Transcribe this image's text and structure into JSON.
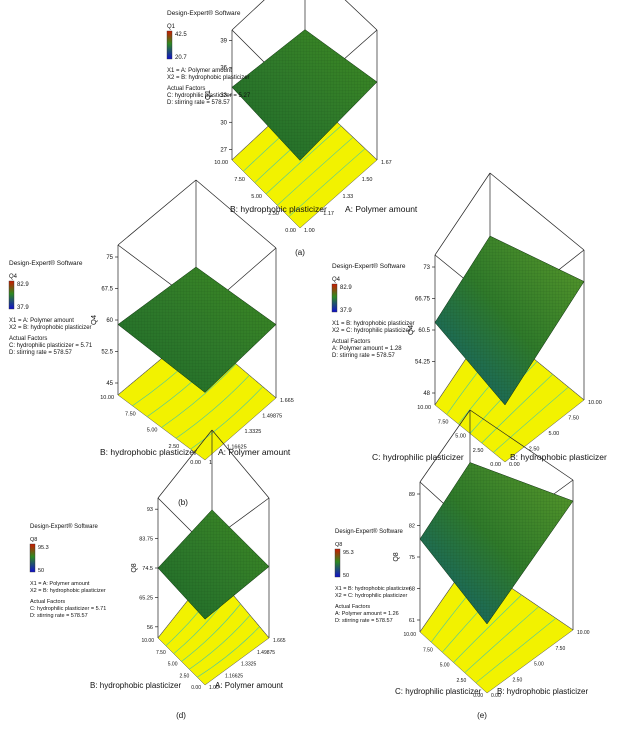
{
  "colors": {
    "surface_top": "#2f7a2a",
    "surface_low": "#0e5e7a",
    "surface_high": "#5a9a2a",
    "floor": "#f2f200",
    "contour": "#44c8a8",
    "box": "#222222",
    "legend_high": "#cc0000",
    "legend_low": "#0000cc"
  },
  "chart_data": [
    {
      "panel_label": "(a)",
      "type": "surface3d",
      "software": "Design-Expert® Software",
      "response": "Q1",
      "legend_high": "42.5",
      "legend_low": "20.7",
      "x1_def": "X1 = A: Polymer amount",
      "x2_def": "X2 = B: hydrophobic plasticizer",
      "actual_factors_title": "Actual Factors",
      "actual_factors": [
        "C: hydrophilic plasticizer = 5.27",
        "D: stirring rate = 578.57"
      ],
      "z_label": "Q1",
      "z_ticks": [
        "39",
        "36",
        "33",
        "30",
        "27"
      ],
      "left_axis_label": "B: hydrophobic plasticizer",
      "left_ticks": [
        "10.00",
        "7.50",
        "5.00",
        "2.50",
        "0.00"
      ],
      "right_axis_label": "A: Polymer amount",
      "right_ticks": [
        "1.67",
        "1.50",
        "1.33",
        "1.17",
        "1.00"
      ]
    },
    {
      "panel_label": "(b)",
      "type": "surface3d",
      "software": "Design-Expert® Software",
      "response": "Q4",
      "legend_high": "82.9",
      "legend_low": "37.9",
      "x1_def": "X1 = A: Polymer amount",
      "x2_def": "X2 = B: hydrophobic plasticizer",
      "actual_factors_title": "Actual Factors",
      "actual_factors": [
        "C: hydrophilic plasticizer = 5.71",
        "D: stirring rate = 578.57"
      ],
      "z_label": "Q4",
      "z_ticks": [
        "75",
        "67.5",
        "60",
        "52.5",
        "45"
      ],
      "left_axis_label": "B: hydrophobic plasticizer",
      "left_ticks": [
        "10.00",
        "7.50",
        "5.00",
        "2.50",
        "0.00"
      ],
      "right_axis_label": "A: Polymer amount",
      "right_ticks": [
        "1.665",
        "1.49875",
        "1.3325",
        "1.16625",
        "1"
      ]
    },
    {
      "panel_label": "(c)",
      "type": "surface3d",
      "software": "Design-Expert® Software",
      "response": "Q4",
      "legend_high": "82.9",
      "legend_low": "37.9",
      "x1_def": "X1 = B: hydrophobic plasticizer",
      "x2_def": "X2 = C: hydrophilic plasticizer",
      "actual_factors_title": "Actual Factors",
      "actual_factors": [
        "A: Polymer amount = 1.28",
        "D: stirring rate = 578.57"
      ],
      "z_label": "Q4",
      "z_ticks": [
        "73",
        "66.75",
        "60.5",
        "54.25",
        "48"
      ],
      "left_axis_label": "C: hydrophilic plasticizer",
      "left_ticks": [
        "10.00",
        "7.50",
        "5.00",
        "2.50",
        "0.00"
      ],
      "right_axis_label": "B: hydrophobic plasticizer",
      "right_ticks": [
        "10.00",
        "7.50",
        "5.00",
        "2.50",
        "0.00"
      ]
    },
    {
      "panel_label": "(d)",
      "type": "surface3d",
      "software": "Design-Expert® Software",
      "response": "Q8",
      "legend_high": "95.3",
      "legend_low": "50",
      "x1_def": "X1 = A: Polymer amount",
      "x2_def": "X2 = B: hydrophobic plasticizer",
      "actual_factors_title": "Actual Factors",
      "actual_factors": [
        "C: hydrophilic plasticizer = 5.71",
        "D: stirring rate = 578.57"
      ],
      "z_label": "Q8",
      "z_ticks": [
        "93",
        "83.75",
        "74.5",
        "65.25",
        "56"
      ],
      "left_axis_label": "B: hydrophobic plasticizer",
      "left_ticks": [
        "10.00",
        "7.50",
        "5.00",
        "2.50",
        "0.00"
      ],
      "right_axis_label": "A: Polymer amount",
      "right_ticks": [
        "1.665",
        "1.49875",
        "1.3325",
        "1.16625",
        "1.00"
      ]
    },
    {
      "panel_label": "(e)",
      "type": "surface3d",
      "software": "Design-Expert® Software",
      "response": "Q8",
      "legend_high": "95.3",
      "legend_low": "50",
      "x1_def": "X1 = B: hydrophobic plasticizer",
      "x2_def": "X2 = C: hydrophilic plasticizer",
      "actual_factors_title": "Actual Factors",
      "actual_factors": [
        "A: Polymer amount = 1.26",
        "D: stirring rate = 578.57"
      ],
      "z_label": "Q8",
      "z_ticks": [
        "89",
        "82",
        "75",
        "68",
        "61"
      ],
      "left_axis_label": "C: hydrophilic plasticizer",
      "left_ticks": [
        "10.00",
        "7.50",
        "5.00",
        "2.50",
        "0.00"
      ],
      "right_axis_label": "B: hydrophobic plasticizer",
      "right_ticks": [
        "10.00",
        "7.50",
        "5.00",
        "2.50",
        "0.00"
      ]
    }
  ]
}
